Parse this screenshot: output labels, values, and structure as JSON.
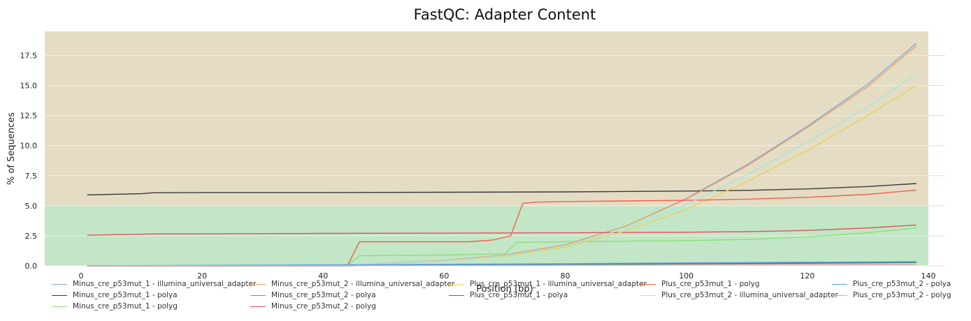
{
  "chart_data": {
    "type": "line",
    "title": "FastQC: Adapter Content",
    "xlabel": "Position (bp)",
    "ylabel": "% of Sequences",
    "xlim": [
      -6,
      140
    ],
    "ylim": [
      0,
      19.5
    ],
    "xticks": [
      0,
      20,
      40,
      60,
      80,
      100,
      120,
      140
    ],
    "yticks": [
      "0.0",
      "2.5",
      "5.0",
      "7.5",
      "10.0",
      "12.5",
      "15.0",
      "17.5"
    ],
    "background_bands": [
      {
        "y0": 0,
        "y1": 5,
        "color": "#c3e6c6"
      },
      {
        "y0": 5,
        "y1": 19.5,
        "color": "#e5dcc4"
      }
    ],
    "grid": "horizontal",
    "legend_position": "bottom",
    "series": [
      {
        "name": "Minus_cre_p53mut_1 - illumina_universal_adapter",
        "color": "#7ea8e0",
        "x": [
          1,
          45,
          50,
          60,
          70,
          80,
          90,
          100,
          110,
          120,
          130,
          138
        ],
        "y": [
          0,
          0,
          0.2,
          0.45,
          0.9,
          1.75,
          3.3,
          5.6,
          8.4,
          11.6,
          15.1,
          18.5
        ]
      },
      {
        "name": "Minus_cre_p53mut_1 - polya",
        "color": "#3a3a3a",
        "x": [
          1,
          10,
          12,
          20,
          40,
          60,
          80,
          100,
          110,
          120,
          130,
          138
        ],
        "y": [
          5.9,
          6.0,
          6.08,
          6.1,
          6.1,
          6.12,
          6.15,
          6.22,
          6.28,
          6.4,
          6.6,
          6.85
        ]
      },
      {
        "name": "Minus_cre_p53mut_1 - polyg",
        "color": "#8be07a",
        "x": [
          1,
          44,
          46,
          60,
          70,
          72,
          80,
          100,
          110,
          120,
          130,
          138
        ],
        "y": [
          0,
          0,
          0.85,
          0.9,
          1.0,
          1.95,
          2.0,
          2.1,
          2.2,
          2.4,
          2.75,
          3.15
        ]
      },
      {
        "name": "Minus_cre_p53mut_2 - illumina_universal_adapter",
        "color": "#f0a060",
        "x": [
          1,
          45,
          50,
          60,
          70,
          80,
          90,
          100,
          110,
          120,
          130,
          138
        ],
        "y": [
          0,
          0,
          0.2,
          0.45,
          0.9,
          1.75,
          3.3,
          5.55,
          8.3,
          11.5,
          14.9,
          18.3
        ]
      },
      {
        "name": "Minus_cre_p53mut_2 - polya",
        "color": "#8080e0",
        "x": [
          1,
          40,
          80,
          100,
          120,
          138
        ],
        "y": [
          0,
          0.05,
          0.15,
          0.2,
          0.25,
          0.3
        ]
      },
      {
        "name": "Minus_cre_p53mut_2 - polyg",
        "color": "#e05060",
        "x": [
          1,
          12,
          40,
          80,
          100,
          110,
          120,
          130,
          138
        ],
        "y": [
          2.55,
          2.65,
          2.7,
          2.75,
          2.8,
          2.85,
          2.95,
          3.15,
          3.4
        ]
      },
      {
        "name": "Plus_cre_p53mut_1 - illumina_universal_adapter",
        "color": "#e8d060",
        "x": [
          1,
          45,
          50,
          60,
          70,
          80,
          90,
          100,
          110,
          120,
          130,
          138
        ],
        "y": [
          0,
          0,
          0.18,
          0.4,
          0.8,
          1.55,
          2.9,
          4.7,
          7.0,
          9.6,
          12.5,
          15.0
        ]
      },
      {
        "name": "Plus_cre_p53mut_1 - polya",
        "color": "#1a8a7a",
        "x": [
          1,
          40,
          80,
          100,
          120,
          138
        ],
        "y": [
          0,
          0.05,
          0.12,
          0.18,
          0.22,
          0.28
        ]
      },
      {
        "name": "Plus_cre_p53mut_1 - polyg",
        "color": "#f06050",
        "x": [
          1,
          44,
          46,
          64,
          68,
          71,
          73,
          75,
          80,
          100,
          110,
          120,
          130,
          138
        ],
        "y": [
          0,
          0,
          2.0,
          2.0,
          2.15,
          2.5,
          5.2,
          5.3,
          5.35,
          5.45,
          5.55,
          5.7,
          5.95,
          6.3
        ]
      },
      {
        "name": "Plus_cre_p53mut_2 - illumina_universal_adapter",
        "color": "#a0e8e0",
        "x": [
          1,
          45,
          50,
          60,
          70,
          80,
          90,
          100,
          110,
          120,
          130,
          138
        ],
        "y": [
          0,
          0,
          0.18,
          0.42,
          0.85,
          1.65,
          3.1,
          5.1,
          7.55,
          10.3,
          13.2,
          16.0
        ]
      },
      {
        "name": "Plus_cre_p53mut_2 - polya",
        "color": "#5fa0e8",
        "x": [
          1,
          40,
          80,
          100,
          120,
          138
        ],
        "y": [
          0,
          0.08,
          0.18,
          0.25,
          0.3,
          0.35
        ]
      },
      {
        "name": "Plus_cre_p53mut_2 - polyg",
        "color": "#e8a0b0",
        "x": [
          1,
          40,
          80,
          100,
          120,
          138
        ],
        "y": [
          0,
          0.02,
          0.05,
          0.08,
          0.1,
          0.12
        ]
      }
    ]
  }
}
